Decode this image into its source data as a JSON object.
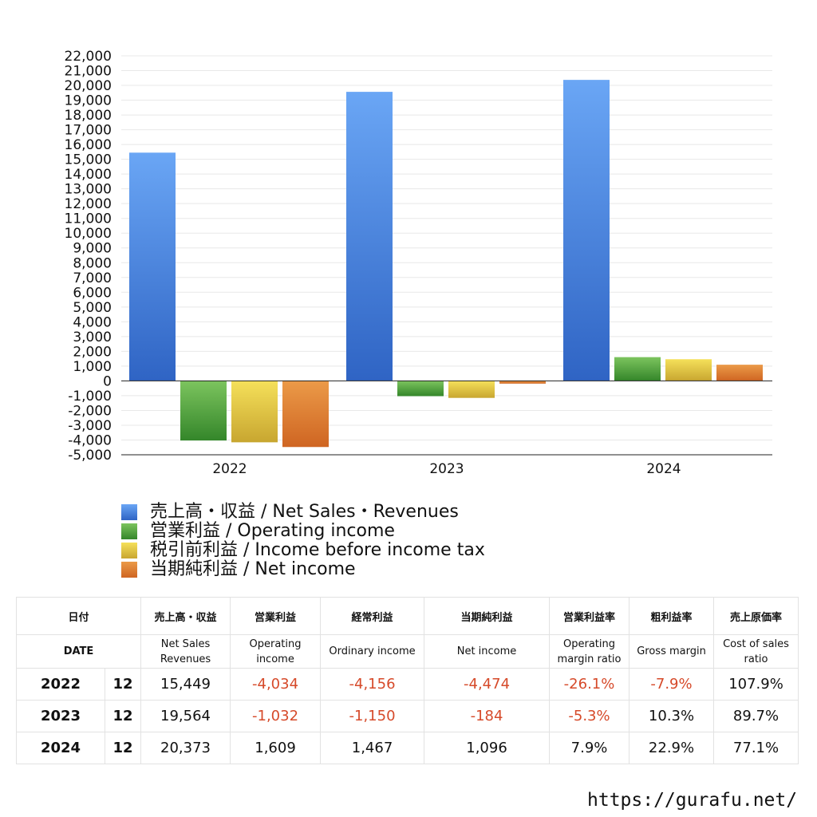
{
  "chart_data": {
    "type": "bar",
    "categories": [
      "2022",
      "2023",
      "2024"
    ],
    "series": [
      {
        "name": "売上高・収益 / Net Sales・Revenues",
        "values": [
          15449,
          19564,
          20373
        ],
        "color": "#4a86e8"
      },
      {
        "name": "営業利益 / Operating income",
        "values": [
          -4034,
          -1032,
          1609
        ],
        "color": "#4aa83a"
      },
      {
        "name": "税引前利益 / Income before income tax",
        "values": [
          -4156,
          -1150,
          1467
        ],
        "color": "#e6c73a"
      },
      {
        "name": "当期純利益 / Net income",
        "values": [
          -4474,
          -184,
          1096
        ],
        "color": "#e07a2a"
      }
    ],
    "ylim": [
      -5000,
      22000
    ],
    "ytick_step": 1000,
    "grid": true,
    "legend_position": "bottom-left",
    "title": "",
    "xlabel": "",
    "ylabel": ""
  },
  "table": {
    "headers_jp": {
      "date": "日付",
      "sales": "売上高・収益",
      "op": "営業利益",
      "ord": "経常利益",
      "net": "当期純利益",
      "opm": "営業利益率",
      "gm": "粗利益率",
      "cos": "売上原価率"
    },
    "headers_en": {
      "date": "DATE",
      "sales_1": "Net Sales",
      "sales_2": "Revenues",
      "op_1": "Operating",
      "op_2": "income",
      "ord": "Ordinary income",
      "net": "Net income",
      "opm_1": "Operating",
      "opm_2": "margin ratio",
      "gm": "Gross margin",
      "cos_1": "Cost of sales",
      "cos_2": "ratio"
    },
    "rows": [
      {
        "year": "2022",
        "month": "12",
        "sales": "15,449",
        "op": "-4,034",
        "ord": "-4,156",
        "net": "-4,474",
        "opm": "-26.1%",
        "gm": "-7.9%",
        "cos": "107.9%"
      },
      {
        "year": "2023",
        "month": "12",
        "sales": "19,564",
        "op": "-1,032",
        "ord": "-1,150",
        "net": "-184",
        "opm": "-5.3%",
        "gm": "10.3%",
        "cos": "89.7%"
      },
      {
        "year": "2024",
        "month": "12",
        "sales": "20,373",
        "op": "1,609",
        "ord": "1,467",
        "net": "1,096",
        "opm": "7.9%",
        "gm": "22.9%",
        "cos": "77.1%"
      }
    ],
    "negative_color": "#d64a2a"
  },
  "footer": {
    "url": "https://gurafu.net/"
  }
}
